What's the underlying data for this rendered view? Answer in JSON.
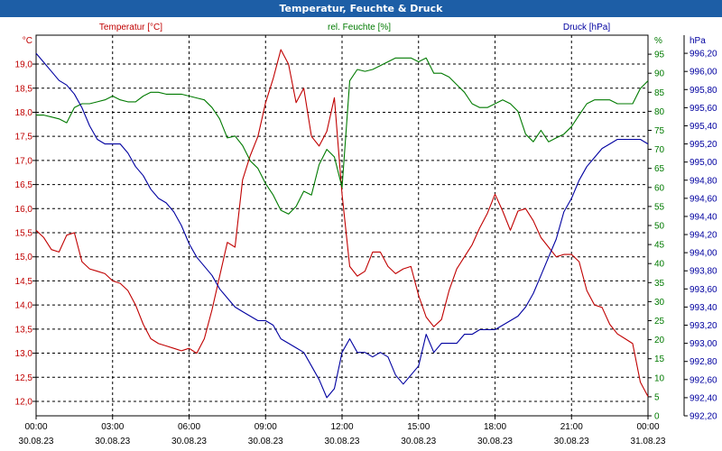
{
  "window": {
    "title": "Temperatur, Feuchte & Druck"
  },
  "colors": {
    "temperature": "#c00000",
    "humidity": "#007a00",
    "pressure": "#0000a0",
    "titlebar": "#1d5ea6",
    "grid": "#000000"
  },
  "chart_data": {
    "type": "line",
    "title": "Temperatur, Feuchte & Druck",
    "x_ticks": [
      {
        "h": 0,
        "time": "00:00",
        "date": "30.08.23"
      },
      {
        "h": 3,
        "time": "03:00",
        "date": "30.08.23"
      },
      {
        "h": 6,
        "time": "06:00",
        "date": "30.08.23"
      },
      {
        "h": 9,
        "time": "09:00",
        "date": "30.08.23"
      },
      {
        "h": 12,
        "time": "12:00",
        "date": "30.08.23"
      },
      {
        "h": 15,
        "time": "15:00",
        "date": "30.08.23"
      },
      {
        "h": 18,
        "time": "18:00",
        "date": "30.08.23"
      },
      {
        "h": 21,
        "time": "21:00",
        "date": "30.08.23"
      },
      {
        "h": 24,
        "time": "00:00",
        "date": "31.08.23"
      }
    ],
    "xlim": [
      0,
      24
    ],
    "axes": {
      "temperature": {
        "label": "Temperatur [°C]",
        "unit": "°C",
        "range": [
          11.7,
          19.6
        ],
        "ticks": [
          "12,0",
          "12,5",
          "13,0",
          "13,5",
          "14,0",
          "14,5",
          "15,0",
          "15,5",
          "16,0",
          "16,5",
          "17,0",
          "17,5",
          "18,0",
          "18,5",
          "19,0"
        ]
      },
      "humidity": {
        "label": "rel. Feuchte [%]",
        "unit": "%",
        "range": [
          0,
          100
        ],
        "ticks": [
          "0",
          "5",
          "10",
          "15",
          "20",
          "25",
          "30",
          "35",
          "40",
          "45",
          "50",
          "55",
          "60",
          "65",
          "70",
          "75",
          "80",
          "85",
          "90",
          "95"
        ]
      },
      "pressure": {
        "label": "Druck [hPa]",
        "unit": "hPa",
        "range": [
          992.2,
          996.4
        ],
        "ticks": [
          "992,20",
          "992,40",
          "992,60",
          "992,80",
          "993,00",
          "993,20",
          "993,40",
          "993,60",
          "993,80",
          "994,00",
          "994,20",
          "994,40",
          "994,60",
          "994,80",
          "995,00",
          "995,20",
          "995,40",
          "995,60",
          "995,80",
          "996,00",
          "996,20"
        ]
      }
    },
    "series": [
      {
        "name": "Temperatur [°C]",
        "axis": "temperature",
        "color": "#c00000",
        "x": [
          0,
          0.3,
          0.6,
          0.9,
          1.2,
          1.5,
          1.8,
          2.1,
          2.4,
          2.7,
          3,
          3.3,
          3.6,
          3.9,
          4.2,
          4.5,
          4.8,
          5.1,
          5.4,
          5.7,
          6,
          6.3,
          6.6,
          6.9,
          7.2,
          7.5,
          7.8,
          8.1,
          8.4,
          8.7,
          9,
          9.3,
          9.6,
          9.9,
          10.2,
          10.5,
          10.8,
          11.1,
          11.4,
          11.7,
          12,
          12.3,
          12.6,
          12.9,
          13.2,
          13.5,
          13.8,
          14.1,
          14.4,
          14.7,
          15,
          15.3,
          15.6,
          15.9,
          16.2,
          16.5,
          16.8,
          17.1,
          17.4,
          17.7,
          18,
          18.3,
          18.6,
          18.9,
          19.2,
          19.5,
          19.8,
          20.1,
          20.4,
          20.7,
          21,
          21.3,
          21.6,
          21.9,
          22.2,
          22.5,
          22.8,
          23.1,
          23.4,
          23.7,
          24
        ],
        "values": [
          15.55,
          15.4,
          15.15,
          15.1,
          15.45,
          15.5,
          14.9,
          14.75,
          14.7,
          14.65,
          14.5,
          14.45,
          14.3,
          14.0,
          13.6,
          13.3,
          13.2,
          13.15,
          13.1,
          13.05,
          13.1,
          13.0,
          13.3,
          13.9,
          14.6,
          15.3,
          15.2,
          16.6,
          17.1,
          17.5,
          18.2,
          18.7,
          19.3,
          19.0,
          18.2,
          18.5,
          17.5,
          17.3,
          17.6,
          18.3,
          16.3,
          14.8,
          14.6,
          14.7,
          15.1,
          15.1,
          14.8,
          14.65,
          14.75,
          14.8,
          14.2,
          13.75,
          13.55,
          13.7,
          14.3,
          14.75,
          15.0,
          15.25,
          15.6,
          15.9,
          16.3,
          15.95,
          15.55,
          15.95,
          16.0,
          15.75,
          15.4,
          15.2,
          15.0,
          15.05,
          15.05,
          14.9,
          14.3,
          14.0,
          13.95,
          13.6,
          13.4,
          13.3,
          13.2,
          12.4,
          12.1
        ]
      },
      {
        "name": "rel. Feuchte [%]",
        "axis": "humidity",
        "color": "#007a00",
        "x": [
          0,
          0.3,
          0.6,
          0.9,
          1.2,
          1.5,
          1.8,
          2.1,
          2.4,
          2.7,
          3,
          3.3,
          3.6,
          3.9,
          4.2,
          4.5,
          4.8,
          5.1,
          5.4,
          5.7,
          6,
          6.3,
          6.6,
          6.9,
          7.2,
          7.5,
          7.8,
          8.1,
          8.4,
          8.7,
          9,
          9.3,
          9.6,
          9.9,
          10.2,
          10.5,
          10.8,
          11.1,
          11.4,
          11.7,
          12,
          12.3,
          12.6,
          12.9,
          13.2,
          13.5,
          13.8,
          14.1,
          14.4,
          14.7,
          15,
          15.3,
          15.6,
          15.9,
          16.2,
          16.5,
          16.8,
          17.1,
          17.4,
          17.7,
          18,
          18.3,
          18.6,
          18.9,
          19.2,
          19.5,
          19.8,
          20.1,
          20.4,
          20.7,
          21,
          21.3,
          21.6,
          21.9,
          22.2,
          22.5,
          22.8,
          23.1,
          23.4,
          23.7,
          24
        ],
        "values": [
          79,
          79,
          78.5,
          78,
          77,
          81,
          82,
          82,
          82.5,
          83,
          84,
          83,
          82.5,
          82.5,
          84,
          85,
          85,
          84.5,
          84.5,
          84.5,
          84,
          83.5,
          83,
          81,
          78,
          73,
          73.5,
          71,
          67,
          65,
          61,
          58,
          54,
          53,
          55,
          59,
          58,
          66,
          70,
          68,
          60,
          88,
          91,
          90.5,
          91,
          92,
          93,
          94,
          94,
          94,
          93,
          94,
          90,
          90,
          89,
          87,
          85,
          82,
          81,
          81,
          82,
          83,
          82,
          80,
          74,
          72,
          75,
          72,
          73,
          74,
          76,
          79,
          82,
          83,
          83,
          83,
          82,
          82,
          82,
          86,
          88
        ]
      },
      {
        "name": "Druck [hPa]",
        "axis": "pressure",
        "color": "#0000a0",
        "x": [
          0,
          0.3,
          0.6,
          0.9,
          1.2,
          1.5,
          1.8,
          2.1,
          2.4,
          2.7,
          3,
          3.3,
          3.6,
          3.9,
          4.2,
          4.5,
          4.8,
          5.1,
          5.4,
          5.7,
          6,
          6.3,
          6.6,
          6.9,
          7.2,
          7.5,
          7.8,
          8.1,
          8.4,
          8.7,
          9,
          9.3,
          9.6,
          9.9,
          10.2,
          10.5,
          10.8,
          11.1,
          11.4,
          11.7,
          12,
          12.3,
          12.6,
          12.9,
          13.2,
          13.5,
          13.8,
          14.1,
          14.4,
          14.7,
          15,
          15.3,
          15.6,
          15.9,
          16.2,
          16.5,
          16.8,
          17.1,
          17.4,
          17.7,
          18,
          18.3,
          18.6,
          18.9,
          19.2,
          19.5,
          19.8,
          20.1,
          20.4,
          20.7,
          21,
          21.3,
          21.6,
          21.9,
          22.2,
          22.5,
          22.8,
          23.1,
          23.4,
          23.7,
          24
        ],
        "values": [
          996.2,
          996.1,
          996.0,
          995.9,
          995.85,
          995.75,
          995.6,
          995.4,
          995.25,
          995.2,
          995.2,
          995.2,
          995.1,
          994.95,
          994.85,
          994.7,
          994.6,
          994.55,
          994.45,
          994.3,
          994.1,
          993.95,
          993.85,
          993.75,
          993.6,
          993.5,
          993.4,
          993.35,
          993.3,
          993.25,
          993.25,
          993.2,
          993.05,
          993.0,
          992.95,
          992.9,
          992.75,
          992.6,
          992.4,
          992.5,
          992.9,
          993.05,
          992.9,
          992.9,
          992.85,
          992.9,
          992.85,
          992.65,
          992.55,
          992.65,
          992.75,
          993.1,
          992.9,
          993.0,
          993.0,
          993.0,
          993.1,
          993.1,
          993.15,
          993.15,
          993.15,
          993.2,
          993.25,
          993.3,
          993.4,
          993.55,
          993.75,
          993.95,
          994.15,
          994.45,
          994.6,
          994.8,
          994.95,
          995.05,
          995.15,
          995.2,
          995.25,
          995.25,
          995.25,
          995.25,
          995.2
        ]
      }
    ]
  }
}
